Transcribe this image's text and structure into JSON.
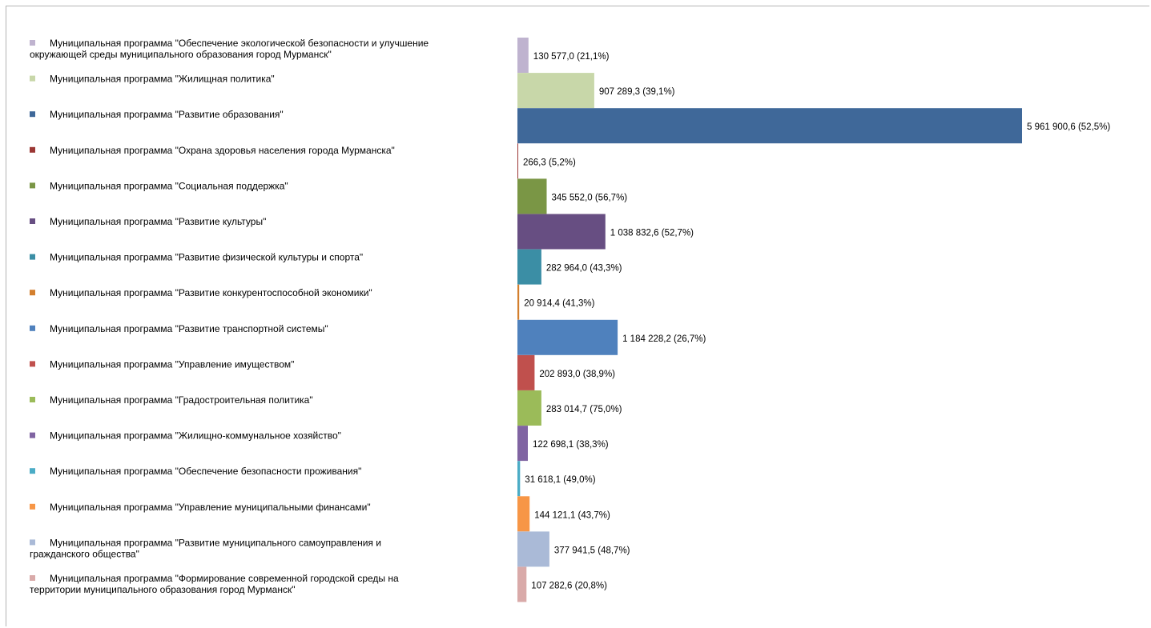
{
  "chart_data": {
    "type": "bar",
    "orientation": "horizontal",
    "title": "",
    "xlabel": "",
    "ylabel": "",
    "legend": "left",
    "grid": false,
    "xlim": [
      0,
      5961900.6
    ],
    "series": [
      {
        "category": "Муниципальная программа \"Обеспечение экологической безопасности и улучшение окружающей среды муниципального образования город Мурманск\"",
        "legend_lines": [
          "Муниципальная программа \"Обеспечение экологической безопасности и улучшение",
          "окружающей среды муниципального образования город Мурманск\""
        ],
        "value": 130577.0,
        "label": "130 577,0 (21,1%)",
        "color": "#BFB3CF"
      },
      {
        "category": "Муниципальная программа \"Жилищная политика\"",
        "legend_lines": [
          "Муниципальная программа \"Жилищная политика\""
        ],
        "value": 907289.3,
        "label": "907 289,3 (39,1%)",
        "color": "#C8D7A9"
      },
      {
        "category": "Муниципальная программа \"Развитие образования\"",
        "legend_lines": [
          "Муниципальная программа \"Развитие образования\""
        ],
        "value": 5961900.6,
        "label": "5 961 900,6 (52,5%)",
        "color": "#3F6899"
      },
      {
        "category": "Муниципальная программа \"Охрана здоровья населения города Мурманска\"",
        "legend_lines": [
          "Муниципальная программа \"Охрана здоровья населения города Мурманска\""
        ],
        "value": 266.3,
        "label": "266,3 (5,2%)",
        "color": "#9B3734"
      },
      {
        "category": "Муниципальная программа \"Социальная поддержка\"",
        "legend_lines": [
          "Муниципальная программа \"Социальная поддержка\""
        ],
        "value": 345552.0,
        "label": "345 552,0 (56,7%)",
        "color": "#7A9645"
      },
      {
        "category": "Муниципальная программа \"Развитие культуры\"",
        "legend_lines": [
          "Муниципальная программа \"Развитие культуры\""
        ],
        "value": 1038832.6,
        "label": "1 038 832,6 (52,7%)",
        "color": "#674E82"
      },
      {
        "category": "Муниципальная программа \"Развитие физической культуры и спорта\"",
        "legend_lines": [
          "Муниципальная программа \"Развитие физической культуры и спорта\""
        ],
        "value": 282964.0,
        "label": "282 964,0 (43,3%)",
        "color": "#3B8EA5"
      },
      {
        "category": "Муниципальная программа \"Развитие конкурентоспособной экономики\"",
        "legend_lines": [
          "Муниципальная программа \"Развитие конкурентоспособной экономики\""
        ],
        "value": 20914.4,
        "label": "20 914,4 (41,3%)",
        "color": "#D37F2E"
      },
      {
        "category": "Муниципальная программа \"Развитие транспортной системы\"",
        "legend_lines": [
          "Муниципальная программа \"Развитие транспортной системы\""
        ],
        "value": 1184228.2,
        "label": "1 184 228,2 (26,7%)",
        "color": "#4F81BD"
      },
      {
        "category": "Муниципальная программа \"Управление имуществом\"",
        "legend_lines": [
          "Муниципальная программа \"Управление имуществом\""
        ],
        "value": 202893.0,
        "label": "202 893,0 (38,9%)",
        "color": "#C0504D"
      },
      {
        "category": "Муниципальная программа \"Градостроительная политика\"",
        "legend_lines": [
          "Муниципальная программа \"Градостроительная политика\""
        ],
        "value": 283014.7,
        "label": "283 014,7 (75,0%)",
        "color": "#9BBB59"
      },
      {
        "category": "Муниципальная программа \"Жилищно-коммунальное хозяйство\"",
        "legend_lines": [
          "Муниципальная программа \"Жилищно-коммунальное хозяйство\""
        ],
        "value": 122698.1,
        "label": "122 698,1 (38,3%)",
        "color": "#8064A2"
      },
      {
        "category": "Муниципальная программа \"Обеспечение безопасности проживания\"",
        "legend_lines": [
          "Муниципальная программа \"Обеспечение безопасности проживания\""
        ],
        "value": 31618.1,
        "label": "31 618,1 (49,0%)",
        "color": "#4BACC6"
      },
      {
        "category": "Муниципальная программа \"Управление муниципальными финансами\"",
        "legend_lines": [
          "Муниципальная программа \"Управление муниципальными финансами\""
        ],
        "value": 144121.1,
        "label": "144 121,1 (43,7%)",
        "color": "#F79646"
      },
      {
        "category": "Муниципальная программа \"Развитие муниципального самоуправления и гражданского общества\"",
        "legend_lines": [
          "Муниципальная программа \"Развитие муниципального самоуправления и",
          "гражданского общества\""
        ],
        "value": 377941.5,
        "label": "377 941,5 (48,7%)",
        "color": "#AABAD7"
      },
      {
        "category": "Муниципальная программа \"Формирование современной городской среды на территории муниципального образования город Мурманск\"",
        "legend_lines": [
          "Муниципальная программа \"Формирование современной городской среды на",
          "территории муниципального образования город Мурманск\""
        ],
        "value": 107282.6,
        "label": "107 282,6 (20,8%)",
        "color": "#D9AAA9"
      }
    ]
  }
}
